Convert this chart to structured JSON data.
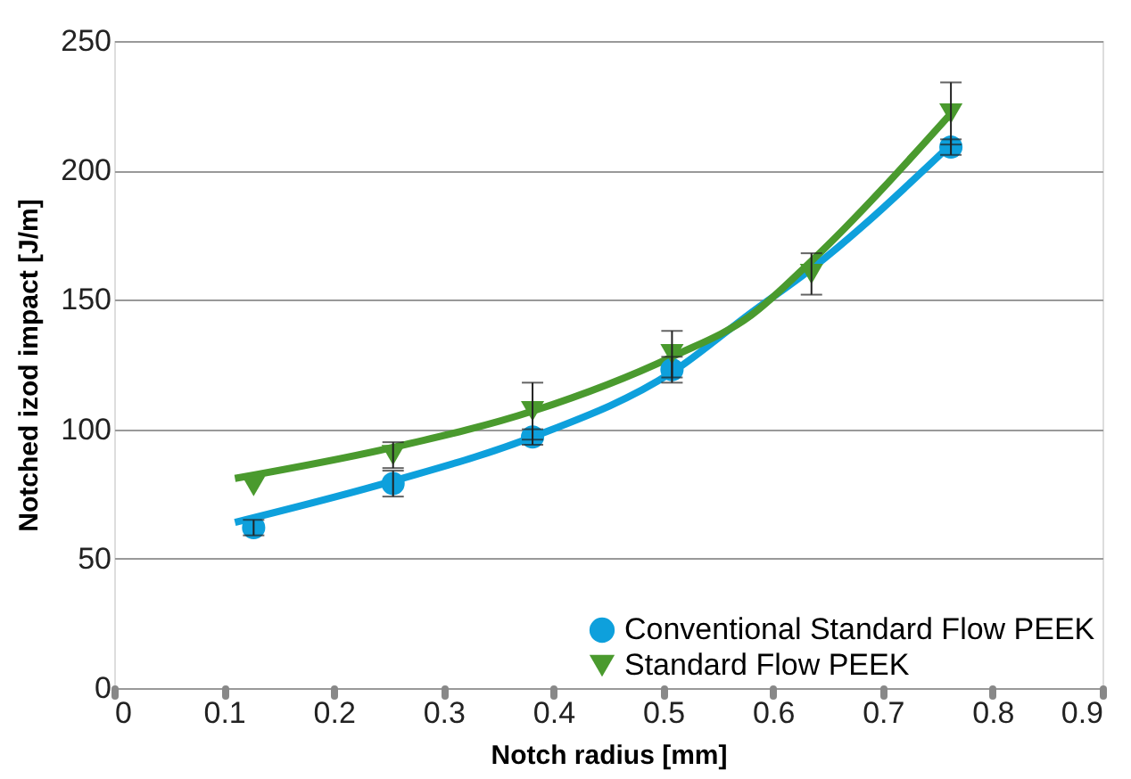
{
  "chart_data": {
    "type": "scatter",
    "xlabel": "Notch radius [mm]",
    "ylabel": "Notched izod impact [J/m]",
    "xlim": [
      0,
      0.9
    ],
    "xticks": [
      0,
      0.1,
      0.2,
      0.3,
      0.4,
      0.5,
      0.6,
      0.7,
      0.8,
      0.9
    ],
    "ylim": [
      0,
      250
    ],
    "yticks": [
      0,
      50,
      100,
      150,
      200,
      250
    ],
    "grid": "y",
    "legend": "bottom right",
    "series": [
      {
        "type": "line",
        "color": "#0ea0dc",
        "x": [
          0.11,
          0.254,
          0.381,
          0.508,
          0.58,
          0.635,
          0.762
        ],
        "values": [
          64,
          80,
          97,
          122,
          145,
          162,
          210
        ]
      },
      {
        "type": "line",
        "color": "#4a9a2e",
        "x": [
          0.11,
          0.254,
          0.381,
          0.508,
          0.58,
          0.635,
          0.762
        ],
        "values": [
          81,
          93,
          107,
          128,
          144,
          165,
          222
        ]
      },
      {
        "name": "Conventional Standard Flow PEEK",
        "color": "#0ea0dc",
        "marker": "circle",
        "x": [
          0.127,
          0.254,
          0.381,
          0.508,
          0.635,
          0.762
        ],
        "values": [
          62,
          79,
          97,
          123,
          null,
          209
        ],
        "errors": [
          3,
          5,
          3,
          5,
          null,
          3
        ]
      },
      {
        "name": "Standard Flow PEEK",
        "color": "#4a9a2e",
        "marker": "triangle",
        "x": [
          0.127,
          0.254,
          0.381,
          0.508,
          0.635,
          0.762
        ],
        "values": [
          78,
          90,
          107,
          129,
          160,
          222
        ],
        "errors": [
          null,
          5,
          11,
          9,
          8,
          12
        ]
      }
    ]
  }
}
